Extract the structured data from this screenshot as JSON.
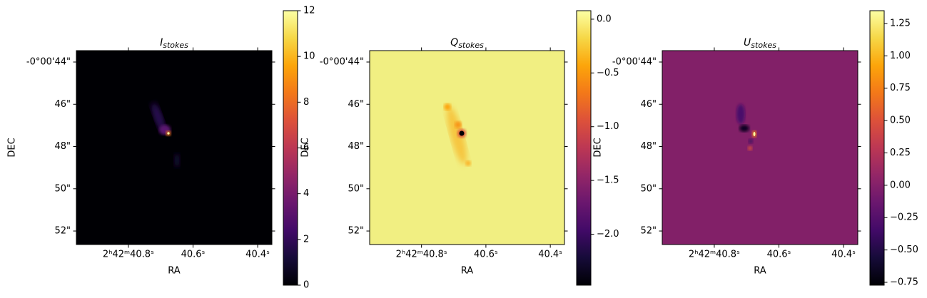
{
  "chart_data": [
    {
      "type": "image",
      "title": "I",
      "title_subscript": "stokes",
      "xlabel": "RA",
      "ylabel": "DEC",
      "xlim": [
        40.961,
        40.356
      ],
      "xticks": [
        {
          "value": 40.8,
          "label": "2ʰ42ᵐ40.8ˢ"
        },
        {
          "value": 40.6,
          "label": "40.6ˢ"
        },
        {
          "value": 40.4,
          "label": "40.4ˢ"
        }
      ],
      "ylim": [
        52.64,
        43.46
      ],
      "yticks": [
        {
          "value": 44,
          "label": "-0°00'44\""
        },
        {
          "value": 46,
          "label": "46\""
        },
        {
          "value": 48,
          "label": "48\""
        },
        {
          "value": 50,
          "label": "50\""
        },
        {
          "value": 52,
          "label": "52\""
        }
      ],
      "colormap": "inferno",
      "clim": [
        0,
        12
      ],
      "cticks": [
        0,
        2,
        4,
        6,
        8,
        10,
        12
      ]
    },
    {
      "type": "image",
      "title": "Q",
      "title_subscript": "stokes",
      "xlabel": "RA",
      "ylabel": "DEC",
      "xlim": [
        40.961,
        40.356
      ],
      "xticks": [
        {
          "value": 40.8,
          "label": "2ʰ42ᵐ40.8ˢ"
        },
        {
          "value": 40.6,
          "label": "40.6ˢ"
        },
        {
          "value": 40.4,
          "label": "40.4ˢ"
        }
      ],
      "ylim": [
        52.64,
        43.46
      ],
      "yticks": [
        {
          "value": 44,
          "label": "-0°00'44\""
        },
        {
          "value": 46,
          "label": "46\""
        },
        {
          "value": 48,
          "label": "48\""
        },
        {
          "value": 50,
          "label": "50\""
        },
        {
          "value": 52,
          "label": "52\""
        }
      ],
      "colormap": "inferno",
      "clim": [
        -2.474,
        0.079
      ],
      "cticks": [
        {
          "value": 0,
          "label": "0.0"
        },
        {
          "value": -0.5,
          "label": "−0.5"
        },
        {
          "value": -1,
          "label": "−1.0"
        },
        {
          "value": -1.5,
          "label": "−1.5"
        },
        {
          "value": -2,
          "label": "−2.0"
        }
      ]
    },
    {
      "type": "image",
      "title": "U",
      "title_subscript": "stokes",
      "xlabel": "RA",
      "ylabel": "DEC",
      "xlim": [
        40.961,
        40.356
      ],
      "xticks": [
        {
          "value": 40.8,
          "label": "2ʰ42ᵐ40.8ˢ"
        },
        {
          "value": 40.6,
          "label": "40.6ˢ"
        },
        {
          "value": 40.4,
          "label": "40.4ˢ"
        }
      ],
      "ylim": [
        52.64,
        43.46
      ],
      "yticks": [
        {
          "value": 44,
          "label": "-0°00'44\""
        },
        {
          "value": 46,
          "label": "46\""
        },
        {
          "value": 48,
          "label": "48\""
        },
        {
          "value": 50,
          "label": "50\""
        },
        {
          "value": 52,
          "label": "52\""
        }
      ],
      "colormap": "inferno",
      "clim": [
        -0.772,
        1.349
      ],
      "cticks": [
        {
          "value": 1.25,
          "label": "1.25"
        },
        {
          "value": 1,
          "label": "1.00"
        },
        {
          "value": 0.75,
          "label": "0.75"
        },
        {
          "value": 0.5,
          "label": "0.50"
        },
        {
          "value": 0.25,
          "label": "0.25"
        },
        {
          "value": 0,
          "label": "0.00"
        },
        {
          "value": -0.25,
          "label": "−0.25"
        },
        {
          "value": -0.5,
          "label": "−0.50"
        },
        {
          "value": -0.75,
          "label": "−0.75"
        }
      ]
    }
  ]
}
